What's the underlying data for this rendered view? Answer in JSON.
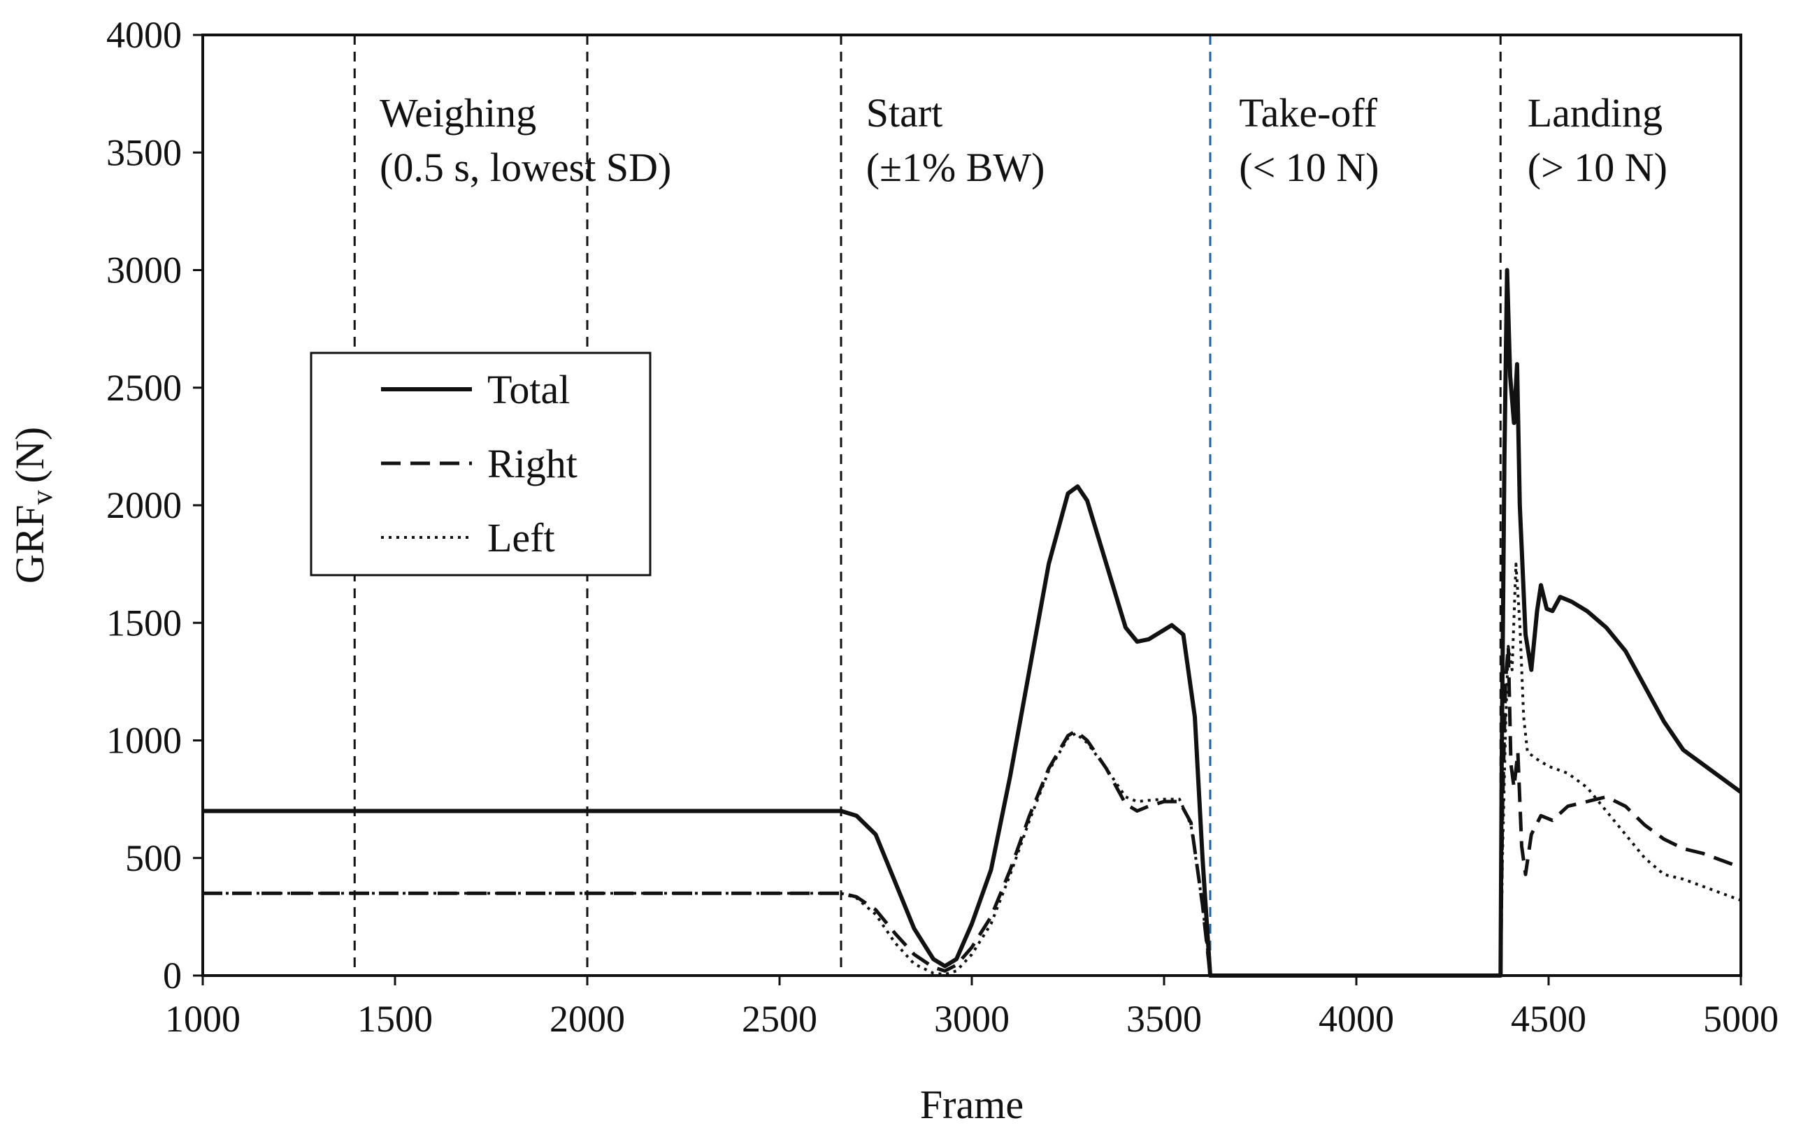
{
  "chart_data": {
    "type": "line",
    "xlabel": "Frame",
    "ylabel": "GRF",
    "ylabel_sub": "v",
    "ylabel_unit": "(N)",
    "xlim": [
      1000,
      5000
    ],
    "ylim": [
      0,
      4000
    ],
    "xticks": [
      1000,
      1500,
      2000,
      2500,
      3000,
      3500,
      4000,
      4500,
      5000
    ],
    "yticks": [
      0,
      500,
      1000,
      1500,
      2000,
      2500,
      3000,
      3500,
      4000
    ],
    "legend_position": "left",
    "vlines": [
      {
        "x": 1395,
        "color": "#111111"
      },
      {
        "x": 2000,
        "color": "#111111"
      },
      {
        "x": 2660,
        "color": "#111111"
      },
      {
        "x": 3620,
        "color": "#1f5fa8"
      },
      {
        "x": 4375,
        "color": "#111111"
      }
    ],
    "annotations": [
      {
        "x": 1460,
        "y": 3610,
        "lines": [
          "Weighing",
          "(0.5 s, lowest SD)"
        ]
      },
      {
        "x": 2725,
        "y": 3610,
        "lines": [
          "Start",
          "(±1% BW)"
        ]
      },
      {
        "x": 3695,
        "y": 3610,
        "lines": [
          "Take-off",
          "(< 10 N)"
        ]
      },
      {
        "x": 4445,
        "y": 3610,
        "lines": [
          "Landing",
          "(> 10 N)"
        ]
      }
    ],
    "series": [
      {
        "name": "Total",
        "style": "solid",
        "points": [
          [
            1000,
            700
          ],
          [
            1500,
            700
          ],
          [
            2000,
            700
          ],
          [
            2500,
            700
          ],
          [
            2660,
            700
          ],
          [
            2700,
            680
          ],
          [
            2750,
            600
          ],
          [
            2800,
            400
          ],
          [
            2850,
            200
          ],
          [
            2900,
            70
          ],
          [
            2930,
            40
          ],
          [
            2960,
            70
          ],
          [
            3000,
            220
          ],
          [
            3050,
            450
          ],
          [
            3100,
            850
          ],
          [
            3150,
            1300
          ],
          [
            3200,
            1750
          ],
          [
            3250,
            2050
          ],
          [
            3275,
            2080
          ],
          [
            3300,
            2020
          ],
          [
            3350,
            1750
          ],
          [
            3400,
            1480
          ],
          [
            3430,
            1420
          ],
          [
            3460,
            1430
          ],
          [
            3500,
            1470
          ],
          [
            3520,
            1490
          ],
          [
            3550,
            1450
          ],
          [
            3580,
            1100
          ],
          [
            3600,
            500
          ],
          [
            3620,
            0
          ],
          [
            4375,
            0
          ],
          [
            4378,
            900
          ],
          [
            4385,
            2200
          ],
          [
            4392,
            3000
          ],
          [
            4400,
            2550
          ],
          [
            4410,
            2350
          ],
          [
            4418,
            2600
          ],
          [
            4425,
            2000
          ],
          [
            4440,
            1450
          ],
          [
            4455,
            1300
          ],
          [
            4470,
            1550
          ],
          [
            4480,
            1660
          ],
          [
            4495,
            1560
          ],
          [
            4510,
            1550
          ],
          [
            4530,
            1610
          ],
          [
            4560,
            1590
          ],
          [
            4600,
            1550
          ],
          [
            4650,
            1480
          ],
          [
            4700,
            1380
          ],
          [
            4750,
            1230
          ],
          [
            4800,
            1080
          ],
          [
            4850,
            960
          ],
          [
            4900,
            900
          ],
          [
            4950,
            840
          ],
          [
            5000,
            780
          ]
        ]
      },
      {
        "name": "Right",
        "style": "dashed",
        "points": [
          [
            1000,
            350
          ],
          [
            1500,
            350
          ],
          [
            2000,
            350
          ],
          [
            2500,
            350
          ],
          [
            2660,
            350
          ],
          [
            2700,
            335
          ],
          [
            2750,
            280
          ],
          [
            2800,
            180
          ],
          [
            2850,
            90
          ],
          [
            2900,
            35
          ],
          [
            2930,
            20
          ],
          [
            2960,
            45
          ],
          [
            3000,
            120
          ],
          [
            3050,
            250
          ],
          [
            3100,
            450
          ],
          [
            3150,
            680
          ],
          [
            3200,
            880
          ],
          [
            3250,
            1020
          ],
          [
            3270,
            1040
          ],
          [
            3300,
            1000
          ],
          [
            3350,
            880
          ],
          [
            3400,
            730
          ],
          [
            3430,
            700
          ],
          [
            3460,
            720
          ],
          [
            3500,
            740
          ],
          [
            3540,
            740
          ],
          [
            3570,
            650
          ],
          [
            3600,
            300
          ],
          [
            3620,
            0
          ],
          [
            4375,
            0
          ],
          [
            4380,
            700
          ],
          [
            4388,
            1250
          ],
          [
            4395,
            1400
          ],
          [
            4402,
            900
          ],
          [
            4410,
            800
          ],
          [
            4420,
            950
          ],
          [
            4430,
            550
          ],
          [
            4440,
            430
          ],
          [
            4455,
            600
          ],
          [
            4480,
            680
          ],
          [
            4510,
            660
          ],
          [
            4550,
            720
          ],
          [
            4600,
            740
          ],
          [
            4650,
            760
          ],
          [
            4700,
            720
          ],
          [
            4750,
            640
          ],
          [
            4800,
            580
          ],
          [
            4850,
            540
          ],
          [
            4900,
            520
          ],
          [
            4950,
            490
          ],
          [
            5000,
            460
          ]
        ]
      },
      {
        "name": "Left",
        "style": "dotted",
        "points": [
          [
            1000,
            350
          ],
          [
            1500,
            350
          ],
          [
            2000,
            350
          ],
          [
            2500,
            350
          ],
          [
            2660,
            350
          ],
          [
            2700,
            330
          ],
          [
            2750,
            260
          ],
          [
            2800,
            140
          ],
          [
            2850,
            50
          ],
          [
            2900,
            10
          ],
          [
            2930,
            5
          ],
          [
            2960,
            20
          ],
          [
            3000,
            90
          ],
          [
            3050,
            220
          ],
          [
            3100,
            430
          ],
          [
            3150,
            660
          ],
          [
            3200,
            870
          ],
          [
            3250,
            1010
          ],
          [
            3270,
            1030
          ],
          [
            3300,
            990
          ],
          [
            3350,
            880
          ],
          [
            3400,
            760
          ],
          [
            3430,
            740
          ],
          [
            3460,
            745
          ],
          [
            3500,
            750
          ],
          [
            3540,
            750
          ],
          [
            3570,
            640
          ],
          [
            3600,
            300
          ],
          [
            3620,
            0
          ],
          [
            4375,
            0
          ],
          [
            4380,
            500
          ],
          [
            4388,
            1050
          ],
          [
            4395,
            1400
          ],
          [
            4405,
            1300
          ],
          [
            4415,
            1750
          ],
          [
            4425,
            1500
          ],
          [
            4435,
            1100
          ],
          [
            4445,
            950
          ],
          [
            4470,
            920
          ],
          [
            4500,
            890
          ],
          [
            4550,
            860
          ],
          [
            4600,
            800
          ],
          [
            4650,
            700
          ],
          [
            4700,
            600
          ],
          [
            4750,
            500
          ],
          [
            4800,
            430
          ],
          [
            4850,
            410
          ],
          [
            4900,
            380
          ],
          [
            4950,
            350
          ],
          [
            5000,
            320
          ]
        ]
      }
    ]
  }
}
